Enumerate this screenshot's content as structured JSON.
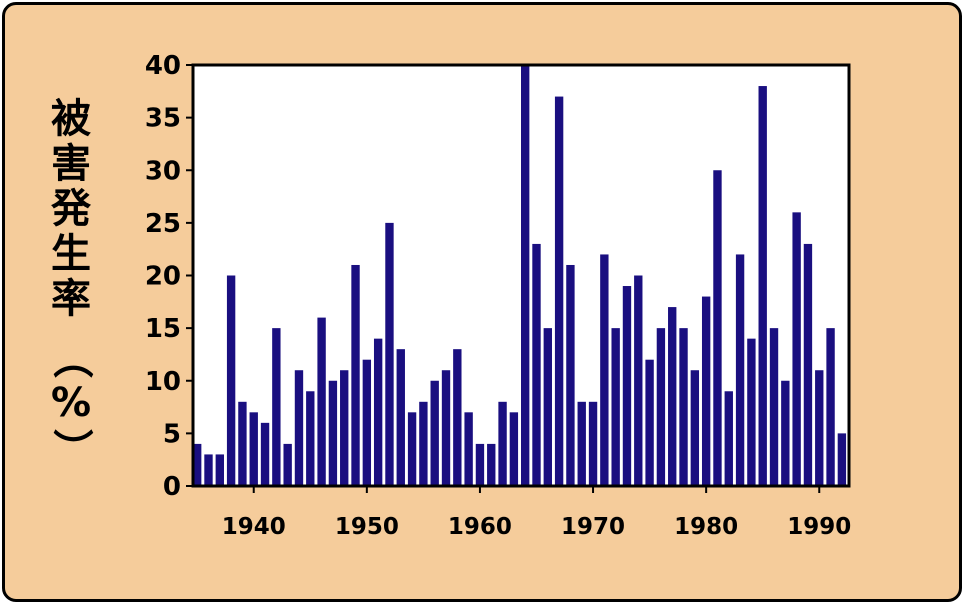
{
  "chart_data": {
    "type": "bar",
    "title": "",
    "ylabel": "被害発生率（%）",
    "xlabel": "",
    "ylim": [
      0,
      40
    ],
    "y_ticks": [
      "0",
      "5",
      "10",
      "15",
      "20",
      "25",
      "30",
      "35",
      "40"
    ],
    "x_ticks": [
      "1940",
      "1950",
      "1960",
      "1970",
      "1980",
      "1990"
    ],
    "x_tick_years": [
      1940,
      1950,
      1960,
      1970,
      1980,
      1990
    ],
    "categories": [
      1935,
      1936,
      1937,
      1938,
      1939,
      1940,
      1941,
      1942,
      1943,
      1944,
      1945,
      1946,
      1947,
      1948,
      1949,
      1950,
      1951,
      1952,
      1953,
      1954,
      1955,
      1956,
      1957,
      1958,
      1959,
      1960,
      1961,
      1962,
      1963,
      1964,
      1965,
      1966,
      1967,
      1968,
      1969,
      1970,
      1971,
      1972,
      1973,
      1974,
      1975,
      1976,
      1977,
      1978,
      1979,
      1980,
      1981,
      1982,
      1983,
      1984,
      1985,
      1986,
      1987,
      1988,
      1989,
      1990,
      1991,
      1992
    ],
    "values": [
      4,
      3,
      3,
      20,
      8,
      7,
      6,
      15,
      4,
      11,
      9,
      16,
      10,
      11,
      21,
      12,
      14,
      25,
      13,
      7,
      8,
      10,
      11,
      13,
      7,
      4,
      4,
      8,
      7,
      40,
      23,
      15,
      37,
      21,
      8,
      8,
      22,
      15,
      19,
      20,
      12,
      15,
      17,
      15,
      11,
      18,
      30,
      9,
      22,
      14,
      38,
      15,
      10,
      26,
      23,
      11,
      15,
      5
    ],
    "grid": false,
    "legend": "none",
    "colors": {
      "bar": "#1a0f80",
      "background": "#f5cc9b",
      "plot_area": "#ffffff",
      "axis": "#000000"
    }
  }
}
